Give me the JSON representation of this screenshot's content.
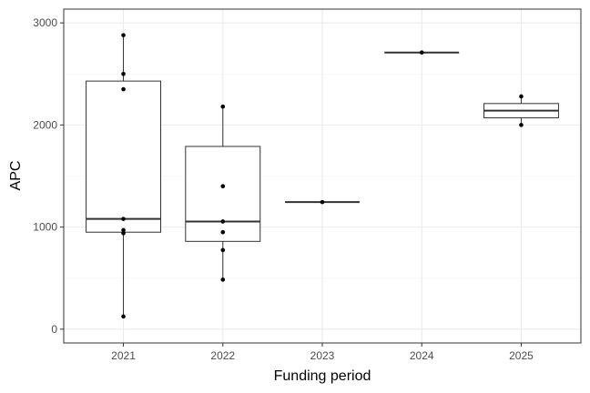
{
  "chart_data": {
    "type": "boxplot",
    "title": "",
    "xlabel": "Funding period",
    "ylabel": "APC",
    "ylim": [
      0,
      3000
    ],
    "yticks": [
      0,
      1000,
      2000,
      3000
    ],
    "ytick_labels": [
      "0",
      "1000",
      "2000",
      "3000"
    ],
    "minor_yticks": [
      500,
      1500,
      2500
    ],
    "grid": true,
    "theme": "bw",
    "categories": [
      "2021",
      "2022",
      "2023",
      "2024",
      "2025"
    ],
    "boxes": [
      {
        "category": "2021",
        "whisker_low": 125,
        "q1": 950,
        "median": 1080,
        "q3": 2430,
        "whisker_high": 2880
      },
      {
        "category": "2022",
        "whisker_low": 485,
        "q1": 860,
        "median": 1055,
        "q3": 1790,
        "whisker_high": 2180
      },
      {
        "category": "2023",
        "whisker_low": 1245,
        "q1": 1245,
        "median": 1245,
        "q3": 1245,
        "whisker_high": 1245
      },
      {
        "category": "2024",
        "whisker_low": 2710,
        "q1": 2710,
        "median": 2710,
        "q3": 2710,
        "whisker_high": 2710
      },
      {
        "category": "2025",
        "whisker_low": 2000,
        "q1": 2070,
        "median": 2140,
        "q3": 2210,
        "whisker_high": 2280
      }
    ],
    "points": [
      {
        "category": "2021",
        "values": [
          2880,
          2500,
          2350,
          1080,
          970,
          940,
          125
        ]
      },
      {
        "category": "2022",
        "values": [
          2180,
          1400,
          1055,
          950,
          775,
          485
        ]
      },
      {
        "category": "2023",
        "values": [
          1245
        ]
      },
      {
        "category": "2024",
        "values": [
          2710
        ]
      },
      {
        "category": "2025",
        "values": [
          2280,
          2000
        ]
      }
    ],
    "colors": {
      "background": "#ffffff",
      "panel_border": "#333333",
      "grid_major": "#ebebeb",
      "grid_minor": "#f5f5f5",
      "box_stroke": "#333333",
      "point": "#000000",
      "tick_text": "#4d4d4d"
    }
  }
}
